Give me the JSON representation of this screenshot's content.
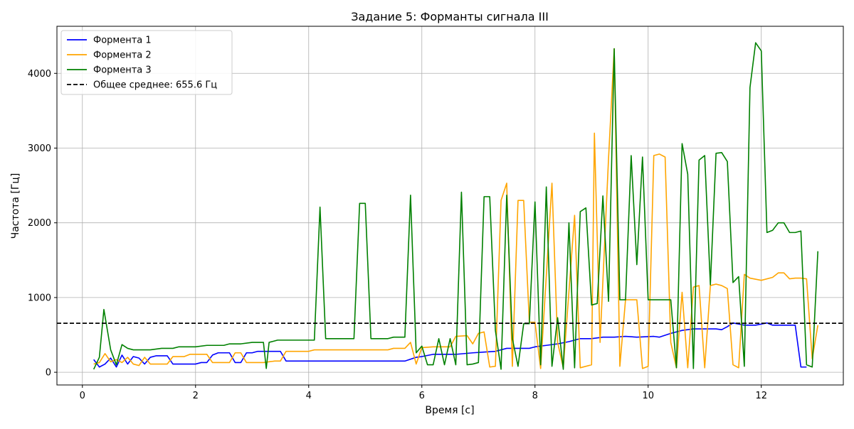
{
  "chart_data": {
    "type": "line",
    "title": "Задание 5: Форманты сигнала III",
    "xlabel": "Время [с]",
    "ylabel": "Частота [Гц]",
    "xlim": [
      -0.45,
      13.45
    ],
    "ylim": [
      -170,
      4630
    ],
    "x_ticks": [
      0,
      2,
      4,
      6,
      8,
      10,
      12
    ],
    "x_tick_labels": [
      "0",
      "2",
      "4",
      "6",
      "8",
      "10",
      "12"
    ],
    "y_ticks": [
      0,
      1000,
      2000,
      3000,
      4000
    ],
    "y_tick_labels": [
      "0",
      "1000",
      "2000",
      "3000",
      "4000"
    ],
    "grid": true,
    "legend_position": "top-left",
    "series": [
      {
        "name": "Формента 1",
        "color": "#0000ff",
        "points": [
          [
            0.2,
            170
          ],
          [
            0.3,
            70
          ],
          [
            0.4,
            110
          ],
          [
            0.5,
            190
          ],
          [
            0.6,
            70
          ],
          [
            0.7,
            230
          ],
          [
            0.8,
            110
          ],
          [
            0.9,
            210
          ],
          [
            1.0,
            190
          ],
          [
            1.1,
            110
          ],
          [
            1.2,
            200
          ],
          [
            1.3,
            220
          ],
          [
            1.4,
            220
          ],
          [
            1.5,
            220
          ],
          [
            1.6,
            110
          ],
          [
            1.8,
            110
          ],
          [
            2.0,
            110
          ],
          [
            2.1,
            130
          ],
          [
            2.2,
            130
          ],
          [
            2.3,
            230
          ],
          [
            2.4,
            260
          ],
          [
            2.5,
            260
          ],
          [
            2.6,
            260
          ],
          [
            2.7,
            130
          ],
          [
            2.8,
            130
          ],
          [
            2.9,
            260
          ],
          [
            3.0,
            260
          ],
          [
            3.1,
            280
          ],
          [
            3.2,
            280
          ],
          [
            3.4,
            280
          ],
          [
            3.5,
            280
          ],
          [
            3.6,
            150
          ],
          [
            3.8,
            150
          ],
          [
            4.0,
            150
          ],
          [
            4.2,
            150
          ],
          [
            4.6,
            150
          ],
          [
            5.0,
            150
          ],
          [
            5.4,
            150
          ],
          [
            5.7,
            150
          ],
          [
            5.9,
            200
          ],
          [
            6.0,
            210
          ],
          [
            6.2,
            240
          ],
          [
            6.6,
            240
          ],
          [
            6.9,
            260
          ],
          [
            7.1,
            270
          ],
          [
            7.3,
            280
          ],
          [
            7.5,
            320
          ],
          [
            7.7,
            320
          ],
          [
            7.9,
            320
          ],
          [
            8.0,
            340
          ],
          [
            8.2,
            360
          ],
          [
            8.4,
            380
          ],
          [
            8.6,
            410
          ],
          [
            8.8,
            450
          ],
          [
            9.0,
            450
          ],
          [
            9.2,
            470
          ],
          [
            9.4,
            470
          ],
          [
            9.6,
            480
          ],
          [
            9.8,
            470
          ],
          [
            10.1,
            480
          ],
          [
            10.2,
            470
          ],
          [
            10.4,
            520
          ],
          [
            10.6,
            560
          ],
          [
            10.8,
            580
          ],
          [
            11.0,
            580
          ],
          [
            11.2,
            580
          ],
          [
            11.3,
            570
          ],
          [
            11.4,
            610
          ],
          [
            11.5,
            660
          ],
          [
            11.7,
            630
          ],
          [
            11.9,
            630
          ],
          [
            12.1,
            660
          ],
          [
            12.2,
            630
          ],
          [
            12.4,
            630
          ],
          [
            12.6,
            630
          ],
          [
            12.7,
            70
          ],
          [
            12.8,
            70
          ]
        ]
      },
      {
        "name": "Формента 2",
        "color": "#ffa500",
        "points": [
          [
            0.2,
            110
          ],
          [
            0.3,
            130
          ],
          [
            0.4,
            250
          ],
          [
            0.5,
            140
          ],
          [
            0.6,
            170
          ],
          [
            0.7,
            130
          ],
          [
            0.8,
            200
          ],
          [
            0.9,
            110
          ],
          [
            1.0,
            90
          ],
          [
            1.1,
            200
          ],
          [
            1.2,
            110
          ],
          [
            1.4,
            110
          ],
          [
            1.5,
            110
          ],
          [
            1.6,
            210
          ],
          [
            1.8,
            210
          ],
          [
            1.9,
            240
          ],
          [
            2.1,
            240
          ],
          [
            2.2,
            240
          ],
          [
            2.3,
            130
          ],
          [
            2.4,
            130
          ],
          [
            2.6,
            130
          ],
          [
            2.7,
            260
          ],
          [
            2.8,
            260
          ],
          [
            2.9,
            130
          ],
          [
            3.0,
            130
          ],
          [
            3.2,
            130
          ],
          [
            3.4,
            150
          ],
          [
            3.5,
            150
          ],
          [
            3.6,
            280
          ],
          [
            4.0,
            280
          ],
          [
            4.1,
            300
          ],
          [
            4.6,
            300
          ],
          [
            5.0,
            300
          ],
          [
            5.4,
            300
          ],
          [
            5.5,
            320
          ],
          [
            5.7,
            320
          ],
          [
            5.8,
            400
          ],
          [
            5.9,
            110
          ],
          [
            6.0,
            330
          ],
          [
            6.2,
            340
          ],
          [
            6.5,
            340
          ],
          [
            6.6,
            480
          ],
          [
            6.8,
            490
          ],
          [
            6.9,
            380
          ],
          [
            7.0,
            520
          ],
          [
            7.1,
            540
          ],
          [
            7.2,
            70
          ],
          [
            7.3,
            80
          ],
          [
            7.4,
            2300
          ],
          [
            7.5,
            2530
          ],
          [
            7.6,
            80
          ],
          [
            7.7,
            2300
          ],
          [
            7.8,
            2300
          ],
          [
            7.9,
            670
          ],
          [
            8.0,
            670
          ],
          [
            8.1,
            50
          ],
          [
            8.3,
            2530
          ],
          [
            8.4,
            400
          ],
          [
            8.5,
            60
          ],
          [
            8.7,
            2100
          ],
          [
            8.8,
            60
          ],
          [
            9.0,
            100
          ],
          [
            9.05,
            3200
          ],
          [
            9.15,
            400
          ],
          [
            9.3,
            2860
          ],
          [
            9.4,
            4330
          ],
          [
            9.5,
            80
          ],
          [
            9.6,
            970
          ],
          [
            9.8,
            970
          ],
          [
            9.9,
            50
          ],
          [
            10.0,
            80
          ],
          [
            10.1,
            2900
          ],
          [
            10.2,
            2920
          ],
          [
            10.3,
            2880
          ],
          [
            10.4,
            400
          ],
          [
            10.5,
            60
          ],
          [
            10.6,
            1070
          ],
          [
            10.7,
            60
          ],
          [
            10.8,
            1140
          ],
          [
            10.9,
            1160
          ],
          [
            11.0,
            60
          ],
          [
            11.1,
            1160
          ],
          [
            11.2,
            1180
          ],
          [
            11.3,
            1160
          ],
          [
            11.4,
            1120
          ],
          [
            11.5,
            100
          ],
          [
            11.6,
            60
          ],
          [
            11.7,
            1310
          ],
          [
            11.8,
            1260
          ],
          [
            12.0,
            1230
          ],
          [
            12.2,
            1270
          ],
          [
            12.3,
            1330
          ],
          [
            12.4,
            1330
          ],
          [
            12.5,
            1250
          ],
          [
            12.6,
            1260
          ],
          [
            12.7,
            1260
          ],
          [
            12.8,
            1250
          ],
          [
            12.9,
            180
          ],
          [
            13.0,
            630
          ]
        ]
      },
      {
        "name": "Формента 3",
        "color": "#008000",
        "points": [
          [
            0.2,
            40
          ],
          [
            0.3,
            200
          ],
          [
            0.38,
            840
          ],
          [
            0.5,
            300
          ],
          [
            0.6,
            100
          ],
          [
            0.7,
            370
          ],
          [
            0.8,
            320
          ],
          [
            0.9,
            300
          ],
          [
            1.2,
            300
          ],
          [
            1.4,
            320
          ],
          [
            1.6,
            320
          ],
          [
            1.7,
            340
          ],
          [
            2.0,
            340
          ],
          [
            2.2,
            360
          ],
          [
            2.5,
            360
          ],
          [
            2.6,
            380
          ],
          [
            2.8,
            380
          ],
          [
            3.0,
            400
          ],
          [
            3.1,
            400
          ],
          [
            3.2,
            400
          ],
          [
            3.25,
            50
          ],
          [
            3.3,
            400
          ],
          [
            3.45,
            430
          ],
          [
            4.0,
            430
          ],
          [
            4.1,
            430
          ],
          [
            4.2,
            2210
          ],
          [
            4.3,
            450
          ],
          [
            4.8,
            450
          ],
          [
            4.9,
            2260
          ],
          [
            5.0,
            2260
          ],
          [
            5.1,
            450
          ],
          [
            5.4,
            450
          ],
          [
            5.5,
            470
          ],
          [
            5.7,
            470
          ],
          [
            5.8,
            2370
          ],
          [
            5.9,
            260
          ],
          [
            6.0,
            350
          ],
          [
            6.1,
            100
          ],
          [
            6.2,
            100
          ],
          [
            6.3,
            450
          ],
          [
            6.4,
            100
          ],
          [
            6.5,
            450
          ],
          [
            6.6,
            100
          ],
          [
            6.7,
            2410
          ],
          [
            6.8,
            100
          ],
          [
            6.9,
            110
          ],
          [
            7.0,
            130
          ],
          [
            7.1,
            2350
          ],
          [
            7.2,
            2350
          ],
          [
            7.3,
            560
          ],
          [
            7.4,
            40
          ],
          [
            7.5,
            2370
          ],
          [
            7.6,
            450
          ],
          [
            7.7,
            80
          ],
          [
            7.8,
            650
          ],
          [
            7.9,
            650
          ],
          [
            8.0,
            2280
          ],
          [
            8.1,
            100
          ],
          [
            8.2,
            2480
          ],
          [
            8.3,
            80
          ],
          [
            8.4,
            730
          ],
          [
            8.5,
            40
          ],
          [
            8.6,
            2000
          ],
          [
            8.7,
            60
          ],
          [
            8.8,
            2150
          ],
          [
            8.9,
            2200
          ],
          [
            9.0,
            900
          ],
          [
            9.1,
            920
          ],
          [
            9.2,
            2360
          ],
          [
            9.3,
            950
          ],
          [
            9.4,
            4330
          ],
          [
            9.5,
            970
          ],
          [
            9.6,
            970
          ],
          [
            9.7,
            2900
          ],
          [
            9.8,
            1440
          ],
          [
            9.9,
            2880
          ],
          [
            10.0,
            970
          ],
          [
            10.3,
            970
          ],
          [
            10.4,
            970
          ],
          [
            10.5,
            60
          ],
          [
            10.6,
            3060
          ],
          [
            10.7,
            2650
          ],
          [
            10.8,
            50
          ],
          [
            10.9,
            2840
          ],
          [
            11.0,
            2900
          ],
          [
            11.1,
            1170
          ],
          [
            11.2,
            2930
          ],
          [
            11.3,
            2940
          ],
          [
            11.4,
            2820
          ],
          [
            11.5,
            1200
          ],
          [
            11.6,
            1280
          ],
          [
            11.7,
            80
          ],
          [
            11.8,
            3810
          ],
          [
            11.9,
            4410
          ],
          [
            12.0,
            4300
          ],
          [
            12.1,
            1870
          ],
          [
            12.2,
            1900
          ],
          [
            12.3,
            2000
          ],
          [
            12.4,
            2000
          ],
          [
            12.5,
            1870
          ],
          [
            12.6,
            1870
          ],
          [
            12.7,
            1890
          ],
          [
            12.8,
            100
          ],
          [
            12.9,
            70
          ],
          [
            13.0,
            1620
          ]
        ]
      }
    ],
    "reference_line": {
      "name": "Общее среднее: 655.6 Гц",
      "value": 655.6,
      "color": "#000000",
      "style": "dashed"
    }
  }
}
